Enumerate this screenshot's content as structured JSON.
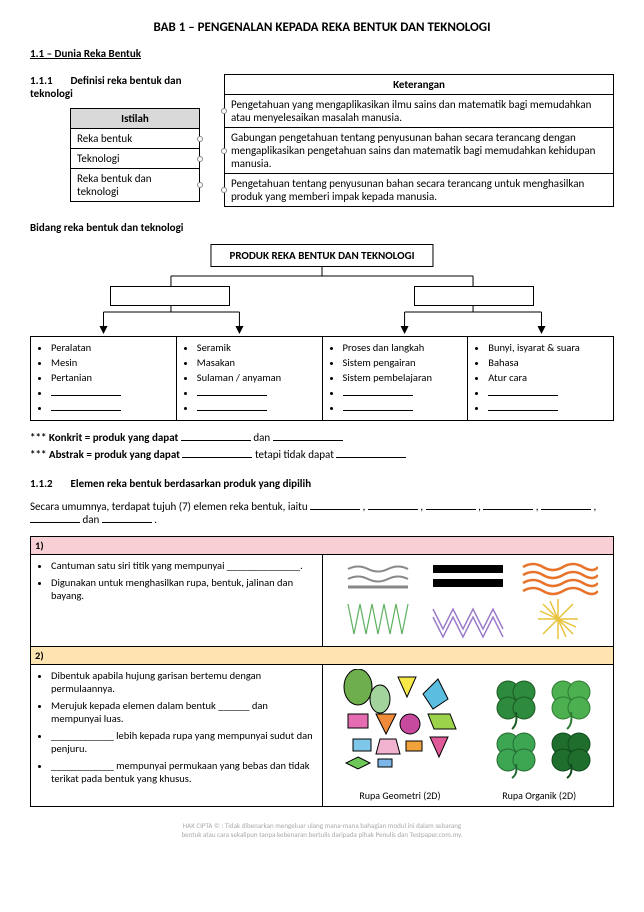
{
  "title": "BAB 1 – PENGENALAN KEPADA REKA BENTUK DAN TEKNOLOGI",
  "h2": "1.1 – Dunia Reka Bentuk",
  "s111_num": "1.1.1",
  "s111_title": "Definisi reka bentuk dan teknologi",
  "istilah": {
    "header": "Istilah",
    "rows": [
      "Reka bentuk",
      "Teknologi",
      "Reka bentuk dan teknologi"
    ]
  },
  "keterangan": {
    "header": "Keterangan",
    "rows": [
      "Pengetahuan yang mengaplikasikan ilmu sains dan matematik bagi memudahkan atau menyelesaikan masalah manusia.",
      "Gabungan pengetahuan tentang penyusunan bahan secara terancang dengan mengaplikasikan pengetahuan sains dan matematik bagi memudahkan kehidupan manusia.",
      "Pengetahuan tentang penyusunan bahan secara terancang untuk menghasilkan produk yang memberi impak kepada manusia."
    ]
  },
  "bidang_hdr": "Bidang reka bentuk dan teknologi",
  "bidang_root": "PRODUK REKA BENTUK DAN TEKNOLOGI",
  "bidang_cols": [
    [
      "Peralatan",
      "Mesin",
      "Pertanian"
    ],
    [
      "Seramik",
      "Masakan",
      "Sulaman / anyaman"
    ],
    [
      "Proses dan langkah",
      "Sistem pengairan",
      "Sistem pembelajaran"
    ],
    [
      "Bunyi, isyarat & suara",
      "Bahasa",
      "Atur cara"
    ]
  ],
  "note1_a": "*** Konkrit = produk yang dapat ",
  "note1_b": " dan ",
  "note2_a": "*** Abstrak = produk yang dapat ",
  "note2_b": " tetapi tidak dapat ",
  "s112_num": "1.1.2",
  "s112_title": "Elemen reka bentuk berdasarkan produk yang dipilih",
  "s112_intro_a": "Secara umumnya, terdapat tujuh (7) elemen reka bentuk, iaitu ",
  "s112_intro_b": " dan ",
  "elemen": [
    {
      "n": "1)",
      "items": [
        "Cantuman satu siri titik yang mempunyai ______________.",
        "Digunakan untuk menghasilkan rupa, bentuk, jalinan dan bayang."
      ]
    },
    {
      "n": "2)",
      "items": [
        "Dibentuk apabila hujung garisan bertemu dengan permulaannya.",
        "Merujuk kepada elemen dalam bentuk ______ dan mempunyai luas.",
        "____________ lebih kepada rupa yang mempunyai sudut dan penjuru.",
        "____________ mempunyai permukaan yang bebas dan tidak terikat pada bentuk yang khusus."
      ]
    }
  ],
  "cap_geo": "Rupa Geometri (2D)",
  "cap_org": "Rupa Organik (2D)",
  "footer1": "HAK CIPTA © : Tidak dibenarkan mengeluar ulang mana-mana bahagian modul ini dalam sebarang",
  "footer2": "bentuk atau cara sekalipun tanpa kebenaran bertulis daripada pihak Penulis dan Testpaper.com.my."
}
